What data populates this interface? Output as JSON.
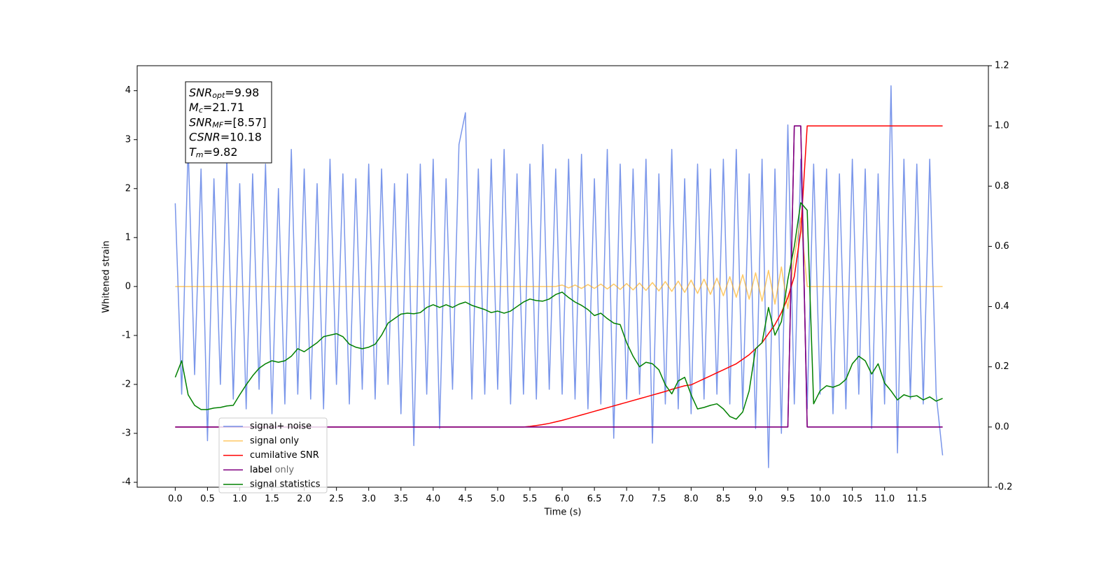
{
  "chart_data": {
    "type": "line",
    "xlabel": "Time (s)",
    "ylabel": "Whitened strain",
    "xlim": [
      -0.59,
      12.61
    ],
    "ylim": [
      -4.1,
      4.51
    ],
    "y2lim": [
      -0.2,
      1.2
    ],
    "xticks": [
      {
        "value": 0,
        "label": "0.0"
      },
      0.5,
      {
        "value": 1,
        "label": "1.0"
      },
      1.5,
      {
        "value": 2,
        "label": "2.0"
      },
      2.5,
      {
        "value": 3,
        "label": "3.0"
      },
      3.5,
      {
        "value": 4,
        "label": "4.0"
      },
      4.5,
      {
        "value": 5,
        "label": "5.0"
      },
      5.5,
      {
        "value": 6,
        "label": "6.0"
      },
      6.5,
      {
        "value": 7,
        "label": "7.0"
      },
      7.5,
      {
        "value": 8,
        "label": "8.0"
      },
      8.5,
      {
        "value": 9,
        "label": "9.0"
      },
      9.5,
      {
        "value": 10,
        "label": "10.0"
      },
      10.5,
      {
        "value": 11,
        "label": "11.0"
      },
      11.5
    ],
    "yticks": [
      -4,
      -3,
      -2,
      -1,
      0,
      1,
      2,
      3,
      4
    ],
    "y2ticks": [
      -0.2,
      {
        "value": 0,
        "label": "0.0"
      },
      0.2,
      0.4,
      0.6,
      0.8,
      {
        "value": 1,
        "label": "1.0"
      },
      1.2
    ],
    "legend": "lower left",
    "annotation": [
      {
        "name": "SNR",
        "sub": "opt",
        "text": "=9.98"
      },
      {
        "name": "M",
        "sub": "c",
        "text": "=21.71"
      },
      {
        "name": "SNR",
        "sub": "MF",
        "text": "=[8.57]"
      },
      {
        "name": "CSNR",
        "text": "=10.18"
      },
      {
        "name": "T",
        "sub": "m",
        "text": "=9.82"
      }
    ],
    "x": [
      0,
      0.1,
      0.2,
      0.3,
      0.4,
      0.5,
      0.6,
      0.7,
      0.8,
      0.9,
      1,
      1.1,
      1.2,
      1.3,
      1.4,
      1.5,
      1.6,
      1.7,
      1.8,
      1.9,
      2,
      2.1,
      2.2,
      2.3,
      2.4,
      2.5,
      2.6,
      2.7,
      2.8,
      2.9,
      3,
      3.1,
      3.2,
      3.3,
      3.4,
      3.5,
      3.6,
      3.7,
      3.8,
      3.9,
      4,
      4.1,
      4.2,
      4.3,
      4.4,
      4.5,
      4.6,
      4.7,
      4.8,
      4.9,
      5,
      5.1,
      5.2,
      5.3,
      5.4,
      5.5,
      5.6,
      5.7,
      5.8,
      5.9,
      6,
      6.1,
      6.2,
      6.3,
      6.4,
      6.5,
      6.6,
      6.7,
      6.8,
      6.9,
      7,
      7.1,
      7.2,
      7.3,
      7.4,
      7.5,
      7.6,
      7.7,
      7.8,
      7.9,
      8,
      8.1,
      8.2,
      8.3,
      8.4,
      8.5,
      8.6,
      8.7,
      8.8,
      8.9,
      9,
      9.1,
      9.2,
      9.3,
      9.4,
      9.5,
      9.6,
      9.7,
      9.8,
      9.9,
      10,
      10.1,
      10.2,
      10.3,
      10.4,
      10.5,
      10.6,
      10.7,
      10.8,
      10.9,
      11,
      11.1,
      11.2,
      11.3,
      11.4,
      11.5,
      11.6,
      11.7,
      11.8,
      11.9
    ],
    "series": [
      {
        "name": "signal+ noise",
        "color": "#4169e1",
        "opacity": 0.7,
        "axis": "y",
        "values": [
          1.7,
          -2.2,
          2.9,
          -1.8,
          2.4,
          -3.15,
          2.2,
          -2.0,
          2.6,
          -2.3,
          2.1,
          -2.5,
          2.3,
          -2.1,
          2.5,
          -2.6,
          2.0,
          -2.4,
          2.8,
          -2.2,
          2.4,
          -2.3,
          2.1,
          -2.5,
          2.6,
          -2.0,
          2.3,
          -2.4,
          2.2,
          -2.1,
          2.5,
          -2.3,
          2.4,
          -2.0,
          2.1,
          -2.6,
          2.3,
          -3.25,
          2.5,
          -2.2,
          2.6,
          -2.9,
          2.2,
          -2.1,
          2.9,
          3.55,
          -2.3,
          2.4,
          -2.2,
          2.6,
          -2.1,
          2.8,
          -2.4,
          2.3,
          -2.2,
          2.5,
          -2.3,
          2.9,
          -2.1,
          2.4,
          -2.2,
          2.6,
          -2.3,
          2.7,
          -2.5,
          2.2,
          -2.4,
          2.8,
          -3.1,
          2.5,
          -2.3,
          2.4,
          -2.2,
          2.6,
          -3.2,
          2.3,
          -2.4,
          2.8,
          -2.5,
          2.2,
          -2.6,
          2.5,
          -2.3,
          2.4,
          -2.2,
          2.6,
          -2.4,
          2.8,
          -2.5,
          2.3,
          -2.9,
          2.6,
          -3.7,
          2.4,
          -3.0,
          3.3,
          -2.4,
          2.6,
          -2.5,
          2.5,
          -2.2,
          2.4,
          -2.6,
          2.3,
          -2.5,
          2.6,
          -2.2,
          2.4,
          -2.9,
          2.3,
          -2.4,
          4.1,
          -3.4,
          2.6,
          -2.3,
          2.5,
          -2.4,
          2.6,
          -2.2,
          -3.45
        ]
      },
      {
        "name": "signal only",
        "color": "#ffa500",
        "opacity": 0.6,
        "axis": "y",
        "values": [
          0,
          0,
          0,
          0,
          0,
          0,
          0,
          0,
          0,
          0,
          0,
          0,
          0,
          0,
          0,
          0,
          0,
          0,
          0,
          0,
          0,
          0,
          0,
          0,
          0,
          0,
          0,
          0,
          0,
          0,
          0,
          0,
          0,
          0,
          0,
          0,
          0,
          0,
          0,
          0,
          0,
          0,
          0,
          0,
          0,
          0,
          0,
          0,
          0,
          0,
          0,
          0,
          0,
          0,
          0,
          0,
          0,
          0,
          0,
          0,
          0.03,
          -0.03,
          0.03,
          -0.04,
          0.04,
          -0.04,
          0.05,
          -0.05,
          0.05,
          -0.06,
          0.06,
          -0.07,
          0.07,
          -0.08,
          0.08,
          -0.09,
          0.1,
          -0.1,
          0.11,
          -0.12,
          0.13,
          -0.14,
          0.15,
          -0.16,
          0.17,
          -0.19,
          0.2,
          -0.22,
          0.24,
          -0.26,
          0.28,
          -0.3,
          0.33,
          -0.36,
          0.4,
          -0.45,
          0.6,
          1.4,
          0,
          0,
          0,
          0,
          0,
          0,
          0,
          0,
          0,
          0,
          0,
          0,
          0,
          0,
          0,
          0,
          0,
          0,
          0,
          0,
          0,
          0
        ]
      },
      {
        "name": "cumilative SNR",
        "color": "#ff0000",
        "opacity": 1,
        "axis": "y2",
        "values": [
          0,
          0,
          0,
          0,
          0,
          0,
          0,
          0,
          0,
          0,
          0,
          0,
          0,
          0,
          0,
          0,
          0,
          0,
          0,
          0,
          0,
          0,
          0,
          0,
          0,
          0,
          0,
          0,
          0,
          0,
          0,
          0,
          0,
          0,
          0,
          0,
          0,
          0,
          0,
          0,
          0,
          0,
          0,
          0,
          0,
          0,
          0,
          0,
          0,
          0,
          0,
          0,
          0,
          0,
          0,
          0.002,
          0.005,
          0.008,
          0.012,
          0.017,
          0.022,
          0.028,
          0.034,
          0.04,
          0.046,
          0.052,
          0.058,
          0.064,
          0.07,
          0.076,
          0.082,
          0.088,
          0.094,
          0.1,
          0.106,
          0.112,
          0.118,
          0.125,
          0.131,
          0.137,
          0.14,
          0.15,
          0.16,
          0.17,
          0.18,
          0.19,
          0.2,
          0.21,
          0.225,
          0.24,
          0.26,
          0.28,
          0.31,
          0.34,
          0.38,
          0.43,
          0.5,
          0.65,
          1.0,
          1.0,
          1.0,
          1.0,
          1.0,
          1.0,
          1.0,
          1.0,
          1.0,
          1.0,
          1.0,
          1.0,
          1.0,
          1.0,
          1.0,
          1.0,
          1.0,
          1.0,
          1.0,
          1.0,
          1.0,
          1.0
        ]
      },
      {
        "name": "label",
        "color": "#800080",
        "opacity": 1,
        "axis": "y2",
        "values": [
          0,
          0,
          0,
          0,
          0,
          0,
          0,
          0,
          0,
          0,
          0,
          0,
          0,
          0,
          0,
          0,
          0,
          0,
          0,
          0,
          0,
          0,
          0,
          0,
          0,
          0,
          0,
          0,
          0,
          0,
          0,
          0,
          0,
          0,
          0,
          0,
          0,
          0,
          0,
          0,
          0,
          0,
          0,
          0,
          0,
          0,
          0,
          0,
          0,
          0,
          0,
          0,
          0,
          0,
          0,
          0,
          0,
          0,
          0,
          0,
          0,
          0,
          0,
          0,
          0,
          0,
          0,
          0,
          0,
          0,
          0,
          0,
          0,
          0,
          0,
          0,
          0,
          0,
          0,
          0,
          0,
          0,
          0,
          0,
          0,
          0,
          0,
          0,
          0,
          0,
          0,
          0,
          0,
          0,
          0,
          0,
          1,
          1,
          0,
          0,
          0,
          0,
          0,
          0,
          0,
          0,
          0,
          0,
          0,
          0,
          0,
          0,
          0,
          0,
          0,
          0,
          0,
          0,
          0,
          0
        ]
      },
      {
        "name": "label only",
        "color": "#800080",
        "opacity": 1,
        "axis": "y2",
        "values": [
          0,
          0,
          0,
          0,
          0,
          0,
          0,
          0,
          0,
          0,
          0,
          0,
          0,
          0,
          0,
          0,
          0,
          0,
          0,
          0,
          0,
          0,
          0,
          0,
          0,
          0,
          0,
          0,
          0,
          0,
          0,
          0,
          0,
          0,
          0,
          0,
          0,
          0,
          0,
          0,
          0,
          0,
          0,
          0,
          0,
          0,
          0,
          0,
          0,
          0,
          0,
          0,
          0,
          0,
          0,
          0,
          0,
          0,
          0,
          0,
          0,
          0,
          0,
          0,
          0,
          0,
          0,
          0,
          0,
          0,
          0,
          0,
          0,
          0,
          0,
          0,
          0,
          0,
          0,
          0,
          0,
          0,
          0,
          0,
          0,
          0,
          0,
          0,
          0,
          0,
          0,
          0,
          0,
          0,
          0,
          0,
          1,
          1,
          0,
          0,
          0,
          0,
          0,
          0,
          0,
          0,
          0,
          0,
          0,
          0,
          0,
          0,
          0,
          0,
          0,
          0,
          0,
          0,
          0,
          0
        ]
      },
      {
        "name": "signal statistics",
        "color": "#008000",
        "opacity": 1,
        "axis": "y2",
        "values": [
          0.165,
          0.22,
          0.107,
          0.072,
          0.058,
          0.058,
          0.063,
          0.065,
          0.07,
          0.072,
          0.107,
          0.14,
          0.17,
          0.195,
          0.21,
          0.22,
          0.215,
          0.22,
          0.235,
          0.26,
          0.25,
          0.265,
          0.28,
          0.3,
          0.305,
          0.31,
          0.3,
          0.275,
          0.265,
          0.26,
          0.265,
          0.275,
          0.305,
          0.345,
          0.36,
          0.375,
          0.378,
          0.376,
          0.38,
          0.397,
          0.406,
          0.397,
          0.406,
          0.397,
          0.408,
          0.415,
          0.404,
          0.397,
          0.39,
          0.38,
          0.385,
          0.378,
          0.385,
          0.4,
          0.415,
          0.425,
          0.42,
          0.418,
          0.425,
          0.44,
          0.448,
          0.43,
          0.415,
          0.404,
          0.39,
          0.37,
          0.378,
          0.36,
          0.345,
          0.34,
          0.28,
          0.235,
          0.2,
          0.215,
          0.21,
          0.19,
          0.14,
          0.11,
          0.153,
          0.165,
          0.107,
          0.06,
          0.065,
          0.072,
          0.077,
          0.06,
          0.035,
          0.026,
          0.05,
          0.12,
          0.26,
          0.28,
          0.397,
          0.305,
          0.35,
          0.49,
          0.6,
          0.745,
          0.72,
          0.077,
          0.12,
          0.137,
          0.132,
          0.14,
          0.158,
          0.21,
          0.235,
          0.22,
          0.176,
          0.21,
          0.146,
          0.12,
          0.09,
          0.107,
          0.1,
          0.104,
          0.09,
          0.1,
          0.086,
          0.095
        ]
      }
    ]
  }
}
